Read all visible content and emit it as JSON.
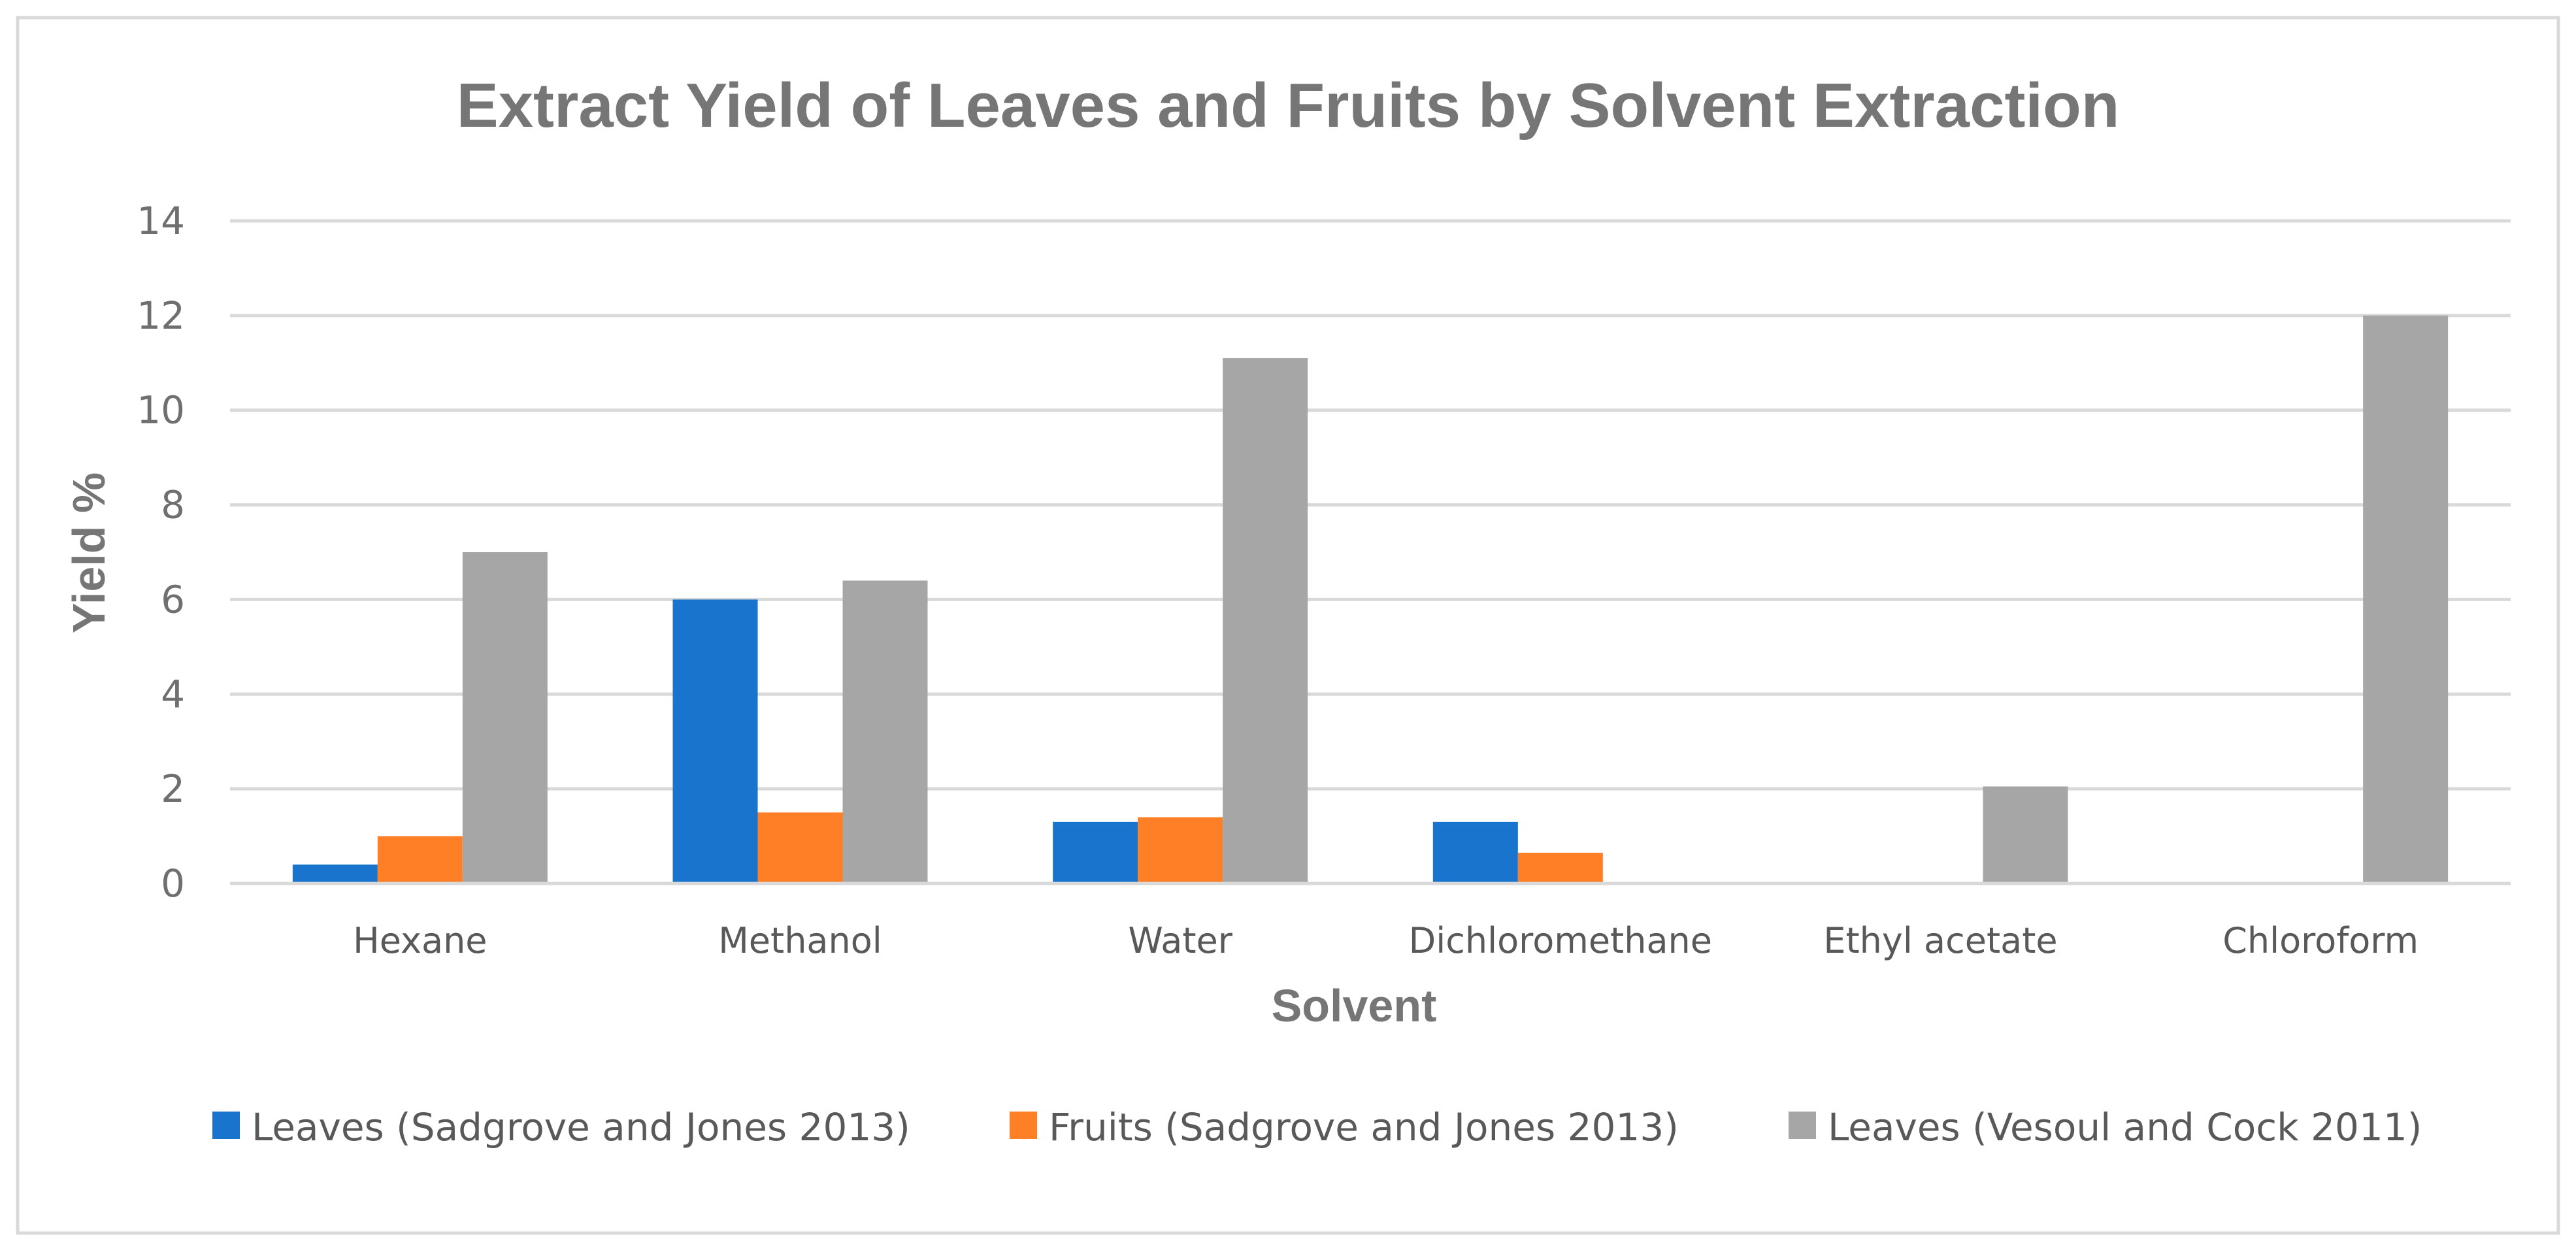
{
  "chart_data": {
    "type": "bar",
    "title": "Extract Yield of Leaves and Fruits by Solvent Extraction",
    "xlabel": "Solvent",
    "ylabel": "Yield %",
    "ylim": [
      0,
      14
    ],
    "yticks": [
      0,
      2,
      4,
      6,
      8,
      10,
      12,
      14
    ],
    "grid": true,
    "legend_position": "bottom",
    "categories": [
      "Hexane",
      "Methanol",
      "Water",
      "Dichloromethane",
      "Ethyl acetate",
      "Chloroform"
    ],
    "series": [
      {
        "name": "Leaves (Sadgrove and Jones 2013)",
        "color": "#1874CD",
        "values": [
          0.4,
          6.0,
          1.3,
          1.3,
          null,
          null
        ]
      },
      {
        "name": "Fruits (Sadgrove and Jones 2013)",
        "color": "#FF7F27",
        "values": [
          1.0,
          1.5,
          1.4,
          0.65,
          null,
          null
        ]
      },
      {
        "name": "Leaves (Vesoul and Cock 2011)",
        "color": "#A6A6A6",
        "values": [
          7.0,
          6.4,
          11.1,
          null,
          2.05,
          12.0
        ]
      }
    ]
  }
}
